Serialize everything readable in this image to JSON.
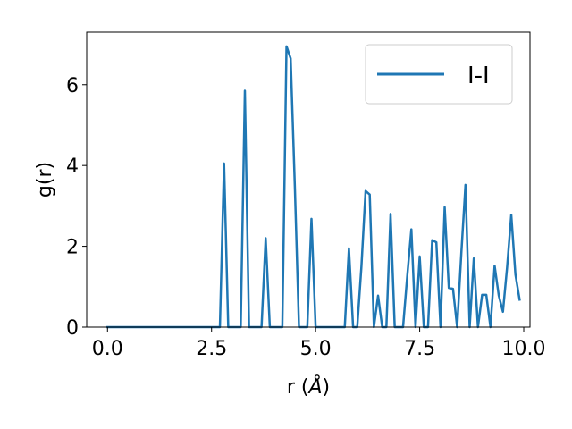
{
  "chart_data": {
    "type": "line",
    "xlabel_text": "r (",
    "xlabel_unit": "Å",
    "xlabel_close": ")",
    "ylabel": "g(r)",
    "xlim": [
      -0.5,
      10.15
    ],
    "ylim": [
      0,
      7.3
    ],
    "xticks": [
      0.0,
      2.5,
      5.0,
      7.5,
      10.0
    ],
    "xtick_labels": [
      "0.0",
      "2.5",
      "5.0",
      "7.5",
      "10.0"
    ],
    "yticks": [
      0,
      2,
      4,
      6
    ],
    "ytick_labels": [
      "0",
      "2",
      "4",
      "6"
    ],
    "grid": false,
    "legend_position": "top-right",
    "colors": {
      "line": "#1f77b4"
    },
    "series": [
      {
        "name": "I-I",
        "x": [
          0.0,
          0.1,
          0.2,
          0.3,
          0.4,
          0.5,
          0.6,
          0.7,
          0.8,
          0.9,
          1.0,
          1.1,
          1.2,
          1.3,
          1.4,
          1.5,
          1.6,
          1.7,
          1.8,
          1.9,
          2.0,
          2.1,
          2.2,
          2.3,
          2.4,
          2.5,
          2.6,
          2.7,
          2.8,
          2.9,
          3.0,
          3.1,
          3.2,
          3.3,
          3.4,
          3.5,
          3.6,
          3.7,
          3.8,
          3.9,
          4.0,
          4.1,
          4.2,
          4.3,
          4.4,
          4.5,
          4.6,
          4.7,
          4.8,
          4.9,
          5.0,
          5.1,
          5.2,
          5.3,
          5.4,
          5.5,
          5.6,
          5.7,
          5.8,
          5.9,
          6.0,
          6.1,
          6.2,
          6.3,
          6.4,
          6.5,
          6.6,
          6.7,
          6.8,
          6.9,
          7.0,
          7.1,
          7.2,
          7.3,
          7.4,
          7.5,
          7.6,
          7.7,
          7.8,
          7.9,
          8.0,
          8.1,
          8.2,
          8.3,
          8.4,
          8.5,
          8.6,
          8.7,
          8.8,
          8.9,
          9.0,
          9.1,
          9.2,
          9.3,
          9.4,
          9.5,
          9.6,
          9.7,
          9.8,
          9.9
        ],
        "y": [
          0,
          0,
          0,
          0,
          0,
          0,
          0,
          0,
          0,
          0,
          0,
          0,
          0,
          0,
          0,
          0,
          0,
          0,
          0,
          0,
          0,
          0,
          0,
          0,
          0,
          0,
          0,
          0,
          4.05,
          0,
          0,
          0,
          0,
          5.85,
          0,
          0,
          0,
          0,
          2.2,
          0,
          0,
          0,
          0,
          6.95,
          6.65,
          3.5,
          0,
          0,
          0,
          2.68,
          0,
          0,
          0,
          0,
          0,
          0,
          0,
          0,
          1.95,
          0,
          0,
          1.5,
          3.37,
          3.28,
          0,
          0.78,
          0,
          0,
          2.8,
          0,
          0,
          0,
          1.25,
          2.42,
          0,
          1.75,
          0,
          0,
          2.15,
          2.1,
          0,
          2.97,
          0.97,
          0.95,
          0,
          1.82,
          3.52,
          0,
          1.7,
          0,
          0.8,
          0.8,
          0,
          1.52,
          0.78,
          0.38,
          1.48,
          2.78,
          1.3,
          0.68
        ]
      }
    ]
  }
}
